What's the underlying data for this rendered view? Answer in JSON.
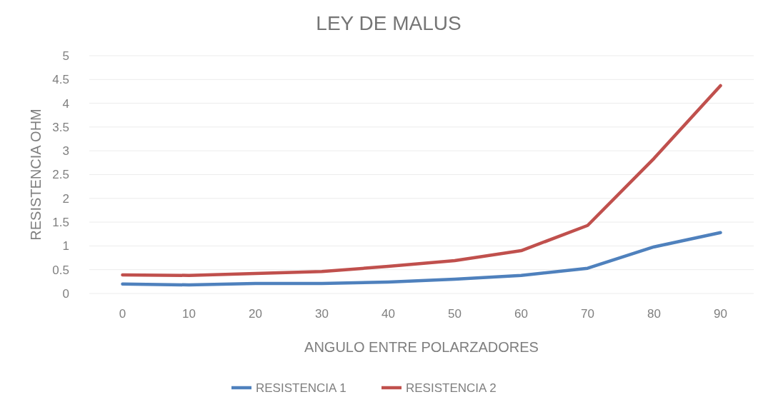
{
  "chart_data": {
    "type": "line",
    "title": "LEY DE MALUS",
    "xlabel": "ANGULO ENTRE POLARZADORES",
    "ylabel": "RESISTENCIA OHM",
    "categories": [
      "0",
      "10",
      "20",
      "30",
      "40",
      "50",
      "60",
      "70",
      "80",
      "90"
    ],
    "series": [
      {
        "name": "RESISTENCIA 1",
        "color": "#4f81bd",
        "values": [
          0.2,
          0.18,
          0.21,
          0.21,
          0.24,
          0.3,
          0.38,
          0.53,
          0.98,
          1.28
        ]
      },
      {
        "name": "RESISTENCIA 2",
        "color": "#c0504d",
        "values": [
          0.39,
          0.38,
          0.42,
          0.46,
          0.57,
          0.69,
          0.9,
          1.43,
          2.84,
          4.37
        ]
      }
    ],
    "ylim": [
      0,
      5
    ],
    "yticks": [
      0,
      0.5,
      1,
      1.5,
      2,
      2.5,
      3,
      3.5,
      4,
      4.5,
      5
    ],
    "grid": "y",
    "legend": "bottom",
    "marker": "none",
    "line_style": "solid"
  }
}
